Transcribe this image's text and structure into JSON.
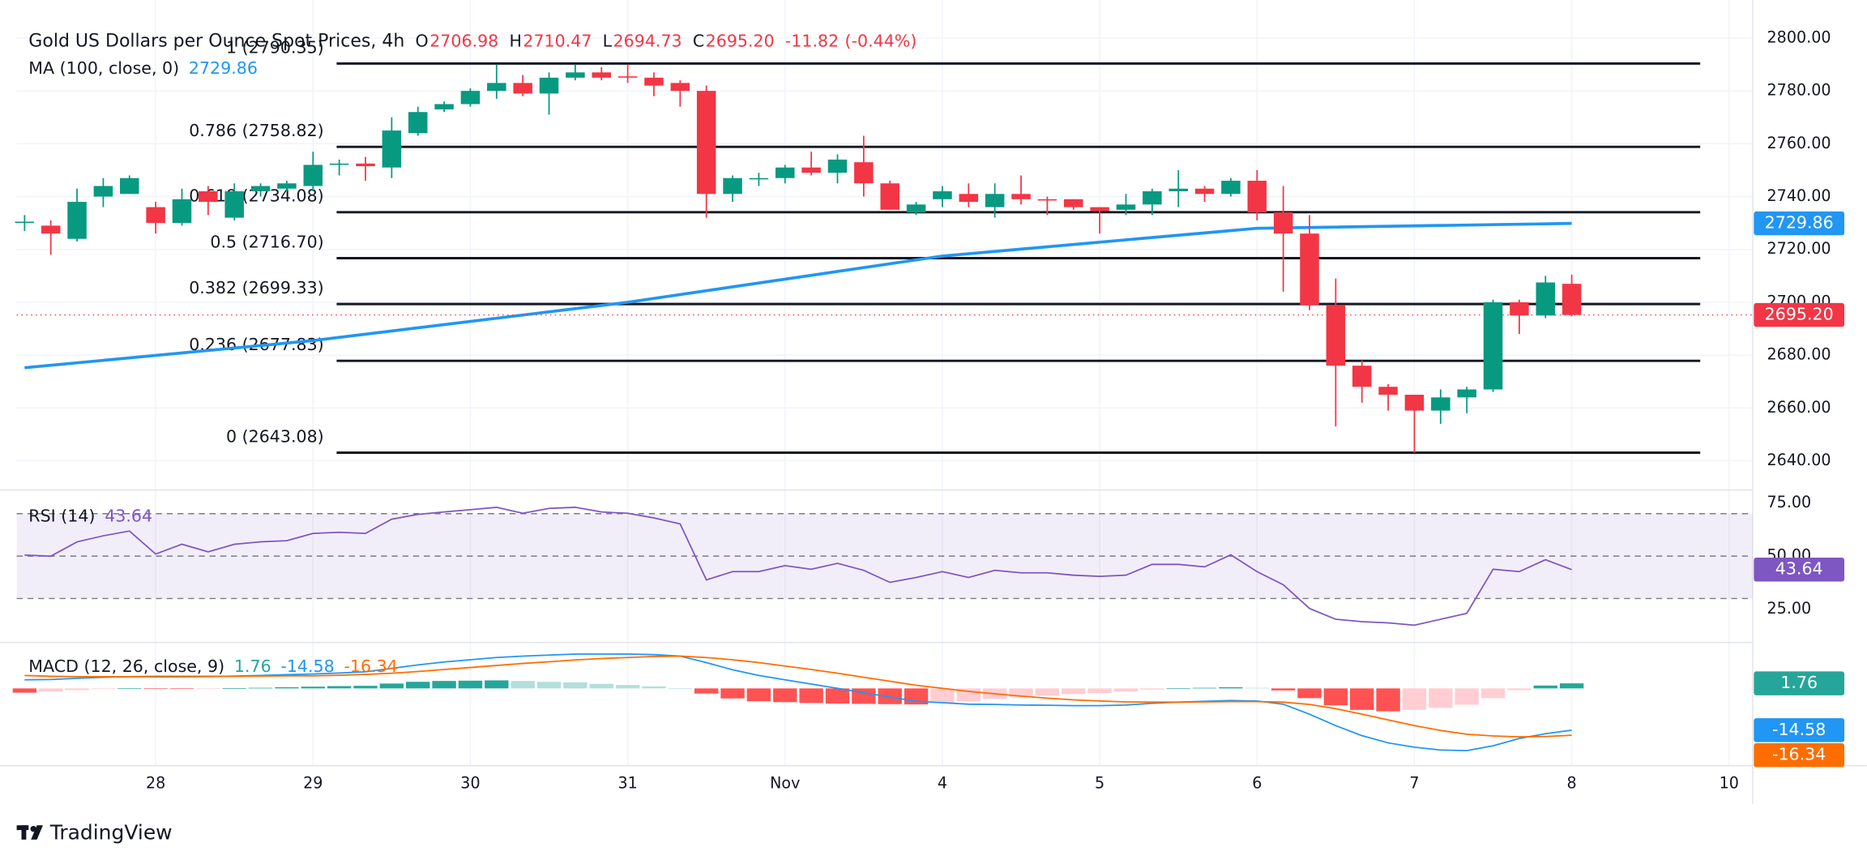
{
  "chart_data": {
    "type": "candlestick",
    "title": "Gold US Dollars per Ounce Spot Prices, 4h",
    "ohlc_labels": [
      "O",
      "H",
      "L",
      "C"
    ],
    "change": -11.82,
    "change_pct": {
      "value": -0.44,
      "label": "(-0.44%)"
    },
    "last_price": {
      "value": 2695.2,
      "label": "2695.20"
    },
    "up_color": "#089981",
    "down_color": "#f23645",
    "grid": true,
    "xlim": [
      -0.3,
      65.9
    ],
    "xticks": [
      {
        "value": 5,
        "label": "28"
      },
      {
        "value": 11,
        "label": "29"
      },
      {
        "value": 17,
        "label": "30"
      },
      {
        "value": 23,
        "label": "31"
      },
      {
        "value": 29,
        "label": "Nov"
      },
      {
        "value": 35,
        "label": "4"
      },
      {
        "value": 41,
        "label": "5"
      },
      {
        "value": 47,
        "label": "6"
      },
      {
        "value": 53,
        "label": "7"
      },
      {
        "value": 59,
        "label": "8"
      },
      {
        "value": 65,
        "label": "10"
      }
    ],
    "ylim": [
      2629.6,
      2814.4
    ],
    "yticks": [
      {
        "value": 2640,
        "label": "2640.00"
      },
      {
        "value": 2660,
        "label": "2660.00"
      },
      {
        "value": 2680,
        "label": "2680.00"
      },
      {
        "value": 2700,
        "label": "2700.00"
      },
      {
        "value": 2720,
        "label": "2720.00"
      },
      {
        "value": 2740,
        "label": "2740.00"
      },
      {
        "value": 2760,
        "label": "2760.00"
      },
      {
        "value": 2780,
        "label": "2780.00"
      },
      {
        "value": 2800,
        "label": "2800.00"
      }
    ],
    "candles": {
      "x": [
        0,
        1,
        2,
        3,
        4,
        5,
        6,
        7,
        8,
        9,
        10,
        11,
        12,
        13,
        14,
        15,
        16,
        17,
        18,
        19,
        20,
        21,
        22,
        23,
        24,
        25,
        26,
        27,
        28,
        29,
        30,
        31,
        32,
        33,
        34,
        35,
        36,
        37,
        38,
        39,
        40,
        41,
        42,
        43,
        44,
        45,
        46,
        47,
        48,
        49,
        50,
        51,
        52,
        53,
        54,
        55,
        56,
        57,
        58,
        59
      ],
      "open": [
        2730,
        2729,
        2724,
        2740,
        2741,
        2736,
        2730,
        2742,
        2732,
        2742,
        2743,
        2744,
        2752,
        2752.5,
        2751,
        2764,
        2773,
        2775,
        2780,
        2783,
        2779,
        2785,
        2787,
        2785.5,
        2785,
        2783,
        2780,
        2741,
        2746.5,
        2747,
        2751,
        2749,
        2753,
        2745,
        2734,
        2739,
        2741,
        2736,
        2741,
        2739,
        2739,
        2736,
        2735,
        2737,
        2742,
        2743,
        2741,
        2746,
        2734,
        2726,
        2699,
        2676,
        2668,
        2665,
        2659,
        2664,
        2667,
        2700,
        2695,
        2706.98
      ],
      "high": [
        2733,
        2731,
        2743,
        2747,
        2748,
        2738,
        2743,
        2744,
        2745,
        2745,
        2746,
        2757,
        2754,
        2755,
        2770,
        2774,
        2776,
        2781,
        2790,
        2786,
        2787,
        2790,
        2789,
        2790,
        2787,
        2784,
        2782,
        2748,
        2749,
        2752,
        2757,
        2756,
        2763,
        2746,
        2738,
        2744,
        2745,
        2745,
        2748,
        2740,
        2739,
        2736,
        2741,
        2743,
        2750,
        2744,
        2747,
        2750,
        2744,
        2733,
        2709,
        2678,
        2669,
        2665,
        2667,
        2668,
        2701,
        2701,
        2710,
        2710.47
      ],
      "low": [
        2727,
        2718,
        2723,
        2736,
        2741,
        2726,
        2729,
        2733,
        2731,
        2740,
        2742,
        2742,
        2748,
        2746,
        2747,
        2763,
        2772,
        2774,
        2777,
        2778,
        2771,
        2784,
        2784,
        2783,
        2778,
        2774,
        2732,
        2738,
        2744,
        2745,
        2748,
        2745,
        2740,
        2735,
        2733,
        2736,
        2736,
        2732,
        2737,
        2733,
        2735,
        2726,
        2733,
        2733,
        2736,
        2738,
        2740,
        2731,
        2704,
        2697,
        2653,
        2662,
        2659,
        2643,
        2654,
        2658,
        2666,
        2688,
        2694,
        2694.73
      ],
      "close": [
        2730.5,
        2726,
        2738,
        2744,
        2747,
        2730,
        2739,
        2738,
        2742,
        2744,
        2745,
        2752,
        2752.5,
        2751.5,
        2765,
        2772,
        2775,
        2780,
        2783,
        2779,
        2785,
        2787,
        2785,
        2785,
        2782,
        2780,
        2741,
        2747,
        2747,
        2751,
        2749,
        2754,
        2745,
        2735,
        2737,
        2742,
        2738,
        2741,
        2739,
        2738.5,
        2736,
        2734.5,
        2737,
        2742,
        2743,
        2741,
        2746,
        2734,
        2726,
        2699,
        2676,
        2668,
        2665,
        2659,
        2664,
        2667,
        2700,
        2695,
        2707.5,
        2695.2
      ]
    },
    "ma": {
      "name": "MA (100, close, 0)",
      "color": "#2196f3",
      "x": [
        0,
        11,
        23,
        35,
        47,
        59
      ],
      "values": [
        2675.2,
        2685.5,
        2700,
        2717.5,
        2728,
        2729.86
      ]
    },
    "fib": {
      "color": "#131722",
      "x": [
        11.9,
        63.9
      ],
      "levels": [
        {
          "label": "1 (2790.35)",
          "value": 2790.35
        },
        {
          "label": "0.786 (2758.82)",
          "value": 2758.82
        },
        {
          "label": "0.618 (2734.08)",
          "value": 2734.08
        },
        {
          "label": "0.5 (2716.70)",
          "value": 2716.7
        },
        {
          "label": "0.382 (2699.33)",
          "value": 2699.33
        },
        {
          "label": "0.236 (2677.83)",
          "value": 2677.83
        },
        {
          "label": "0 (2643.08)",
          "value": 2643.08
        }
      ]
    },
    "rsi": {
      "name": "RSI (14)",
      "color": "#7e57c2",
      "ylim": [
        10.1,
        80.3
      ],
      "band": [
        30,
        70
      ],
      "mid": 50,
      "yticks": [
        {
          "value": 25,
          "label": "25.00"
        },
        {
          "value": 50,
          "label": "50.00"
        },
        {
          "value": 75,
          "label": "75.00"
        }
      ],
      "values": [
        50.5,
        50,
        56.7,
        59.6,
        61.8,
        51,
        55.6,
        52,
        55.6,
        56.7,
        57.3,
        60.7,
        61.2,
        60.7,
        67.4,
        69.7,
        70.8,
        71.9,
        73,
        70.2,
        72.5,
        73,
        70.8,
        70.2,
        68,
        65.2,
        38.8,
        42.7,
        42.7,
        45.5,
        43.8,
        46.6,
        43.3,
        37.6,
        39.9,
        42.7,
        39.9,
        43.3,
        42.1,
        42.1,
        41,
        40.4,
        41,
        46.1,
        46.1,
        44.9,
        50.6,
        42.7,
        36.5,
        25.3,
        20.2,
        19.1,
        18.5,
        17.4,
        20.2,
        23,
        43.8,
        42.7,
        48.3,
        43.64
      ]
    },
    "macd": {
      "name": "MACD (12, 26, close, 9)",
      "ylim": [
        -27,
        15.4
      ],
      "macd": {
        "color": "#2196f3",
        "values": [
          3.0,
          3.1,
          3.5,
          3.9,
          4.1,
          4.0,
          4.0,
          4.1,
          4.3,
          4.5,
          4.8,
          5,
          5.4,
          5.8,
          7,
          8.2,
          9.2,
          10,
          10.8,
          11.3,
          11.6,
          12,
          12,
          12,
          11.8,
          11.3,
          9,
          6.5,
          4.5,
          3,
          1.5,
          0,
          -1.5,
          -3,
          -4.5,
          -5,
          -5.5,
          -5.6,
          -5.8,
          -5.9,
          -6,
          -6,
          -5.8,
          -5.2,
          -4.8,
          -4.5,
          -4.2,
          -4.4,
          -5.5,
          -9,
          -13,
          -16.5,
          -19,
          -20.5,
          -21.5,
          -21.7,
          -20,
          -17.5,
          -15.8,
          -14.58
        ]
      },
      "signal": {
        "color": "#ff6d00",
        "values": [
          4.5,
          4.2,
          4.1,
          4.1,
          4.1,
          4.2,
          4.2,
          4.2,
          4.2,
          4.3,
          4.4,
          4.4,
          4.6,
          4.9,
          5.3,
          5.9,
          6.6,
          7.3,
          8.0,
          8.7,
          9.3,
          9.9,
          10.4,
          10.8,
          11.1,
          11.3,
          10.8,
          10,
          9,
          7.8,
          6.6,
          5.3,
          3.9,
          2.5,
          1.1,
          0,
          -1,
          -1.9,
          -2.7,
          -3.4,
          -4,
          -4.4,
          -4.7,
          -4.8,
          -4.8,
          -4.7,
          -4.6,
          -4.6,
          -4.8,
          -5.6,
          -7.1,
          -9,
          -11,
          -13,
          -14.7,
          -16,
          -16.6,
          -16.9,
          -16.8,
          -16.34
        ]
      },
      "histogram": {
        "colors": [
          "#26a69a",
          "#b2dfdb",
          "#ff5252",
          "#ffcdd2"
        ],
        "values": [
          -1.5,
          -1.1,
          -0.6,
          -0.2,
          0,
          -0.2,
          -0.2,
          -0.1,
          0.1,
          0.2,
          0.4,
          0.6,
          0.8,
          0.9,
          1.7,
          2.3,
          2.6,
          2.7,
          2.8,
          2.6,
          2.3,
          2.1,
          1.6,
          1.2,
          0.7,
          0,
          -1.8,
          -3.5,
          -4.5,
          -4.8,
          -5.1,
          -5.3,
          -5.4,
          -5.5,
          -5.6,
          -5,
          -4.5,
          -3.7,
          -3.1,
          -2.5,
          -2,
          -1.6,
          -1.1,
          -0.4,
          0,
          0.2,
          0.4,
          0.2,
          -0.7,
          -3.4,
          -5.9,
          -7.5,
          -8,
          -7.5,
          -6.8,
          -5.7,
          -3.4,
          -0.6,
          1.0,
          1.76
        ]
      }
    },
    "logo": "TradingView"
  }
}
